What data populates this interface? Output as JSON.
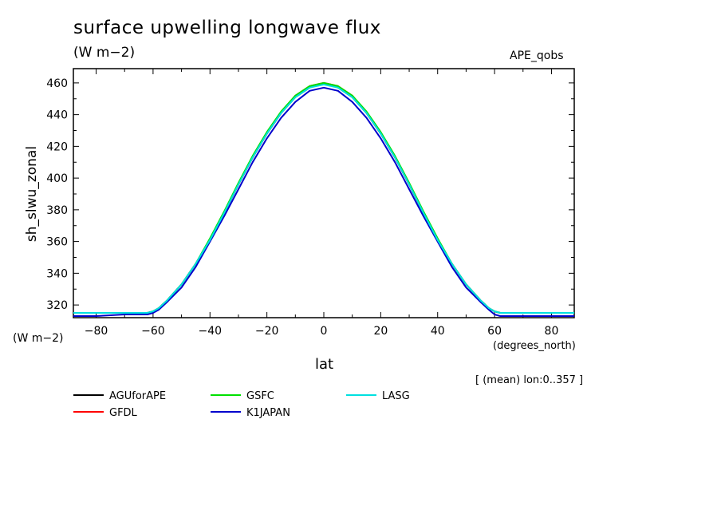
{
  "header": {
    "title": "surface upwelling longwave flux",
    "units": "(W m−2)",
    "experiment": "APE_qobs"
  },
  "axes": {
    "ylabel": "sh_slwu_zonal",
    "y_units": "(W m−2)",
    "x_units": "(degrees_north)",
    "xlabel": "lat"
  },
  "note": "[ (mean) lon:0..357 ]",
  "chart_data": {
    "type": "line",
    "title": "surface upwelling longwave flux",
    "xlabel": "lat",
    "ylabel": "sh_slwu_zonal",
    "xlim": [
      -88,
      88
    ],
    "ylim": [
      312,
      469
    ],
    "xticks": [
      -80,
      -60,
      -40,
      -20,
      0,
      20,
      40,
      60,
      80
    ],
    "yticks": [
      320,
      340,
      360,
      380,
      400,
      420,
      440,
      460
    ],
    "grid": false,
    "legend_position": "bottom",
    "x": [
      -88,
      -80,
      -70,
      -62,
      -60,
      -58,
      -55,
      -50,
      -45,
      -40,
      -35,
      -30,
      -25,
      -20,
      -15,
      -10,
      -5,
      0,
      5,
      10,
      15,
      20,
      25,
      30,
      35,
      40,
      45,
      50,
      55,
      58,
      60,
      62,
      70,
      80,
      88
    ],
    "series": [
      {
        "name": "AGUforAPE",
        "color": "#000000",
        "values": [
          315,
          315,
          315,
          315,
          316,
          318,
          323,
          333,
          346,
          361,
          378,
          396,
          413,
          428,
          441,
          451,
          457,
          460,
          457,
          451,
          441,
          428,
          413,
          396,
          378,
          361,
          346,
          333,
          323,
          318,
          316,
          315,
          315,
          315,
          315
        ]
      },
      {
        "name": "GFDL",
        "color": "#ff0000",
        "values": [
          315,
          315,
          315,
          315,
          316,
          318,
          323,
          333,
          346,
          361,
          378,
          396,
          413,
          428,
          441,
          452,
          458,
          460,
          458,
          452,
          441,
          428,
          413,
          396,
          378,
          361,
          346,
          333,
          323,
          318,
          316,
          315,
          315,
          315,
          315
        ]
      },
      {
        "name": "GSFC",
        "color": "#00e000",
        "values": [
          315,
          315,
          315,
          315,
          316,
          318,
          323,
          333,
          346,
          362,
          379,
          397,
          414,
          429,
          442,
          452,
          458,
          460,
          458,
          452,
          442,
          429,
          414,
          397,
          379,
          362,
          346,
          333,
          323,
          318,
          316,
          315,
          315,
          315,
          315
        ]
      },
      {
        "name": "K1JAPAN",
        "color": "#0000cc",
        "values": [
          313,
          313,
          314,
          314,
          315,
          317,
          322,
          331,
          344,
          360,
          376,
          393,
          410,
          425,
          438,
          448,
          455,
          457,
          455,
          448,
          438,
          425,
          410,
          393,
          376,
          360,
          344,
          331,
          322,
          317,
          314,
          313,
          313,
          313,
          313
        ]
      },
      {
        "name": "LASG",
        "color": "#00e0e0",
        "values": [
          315,
          315,
          315,
          315,
          316,
          318,
          323,
          333,
          346,
          361,
          378,
          396,
          413,
          428,
          441,
          451,
          457,
          459,
          457,
          451,
          441,
          428,
          413,
          396,
          378,
          361,
          346,
          333,
          323,
          318,
          316,
          315,
          315,
          315,
          315
        ]
      }
    ]
  }
}
